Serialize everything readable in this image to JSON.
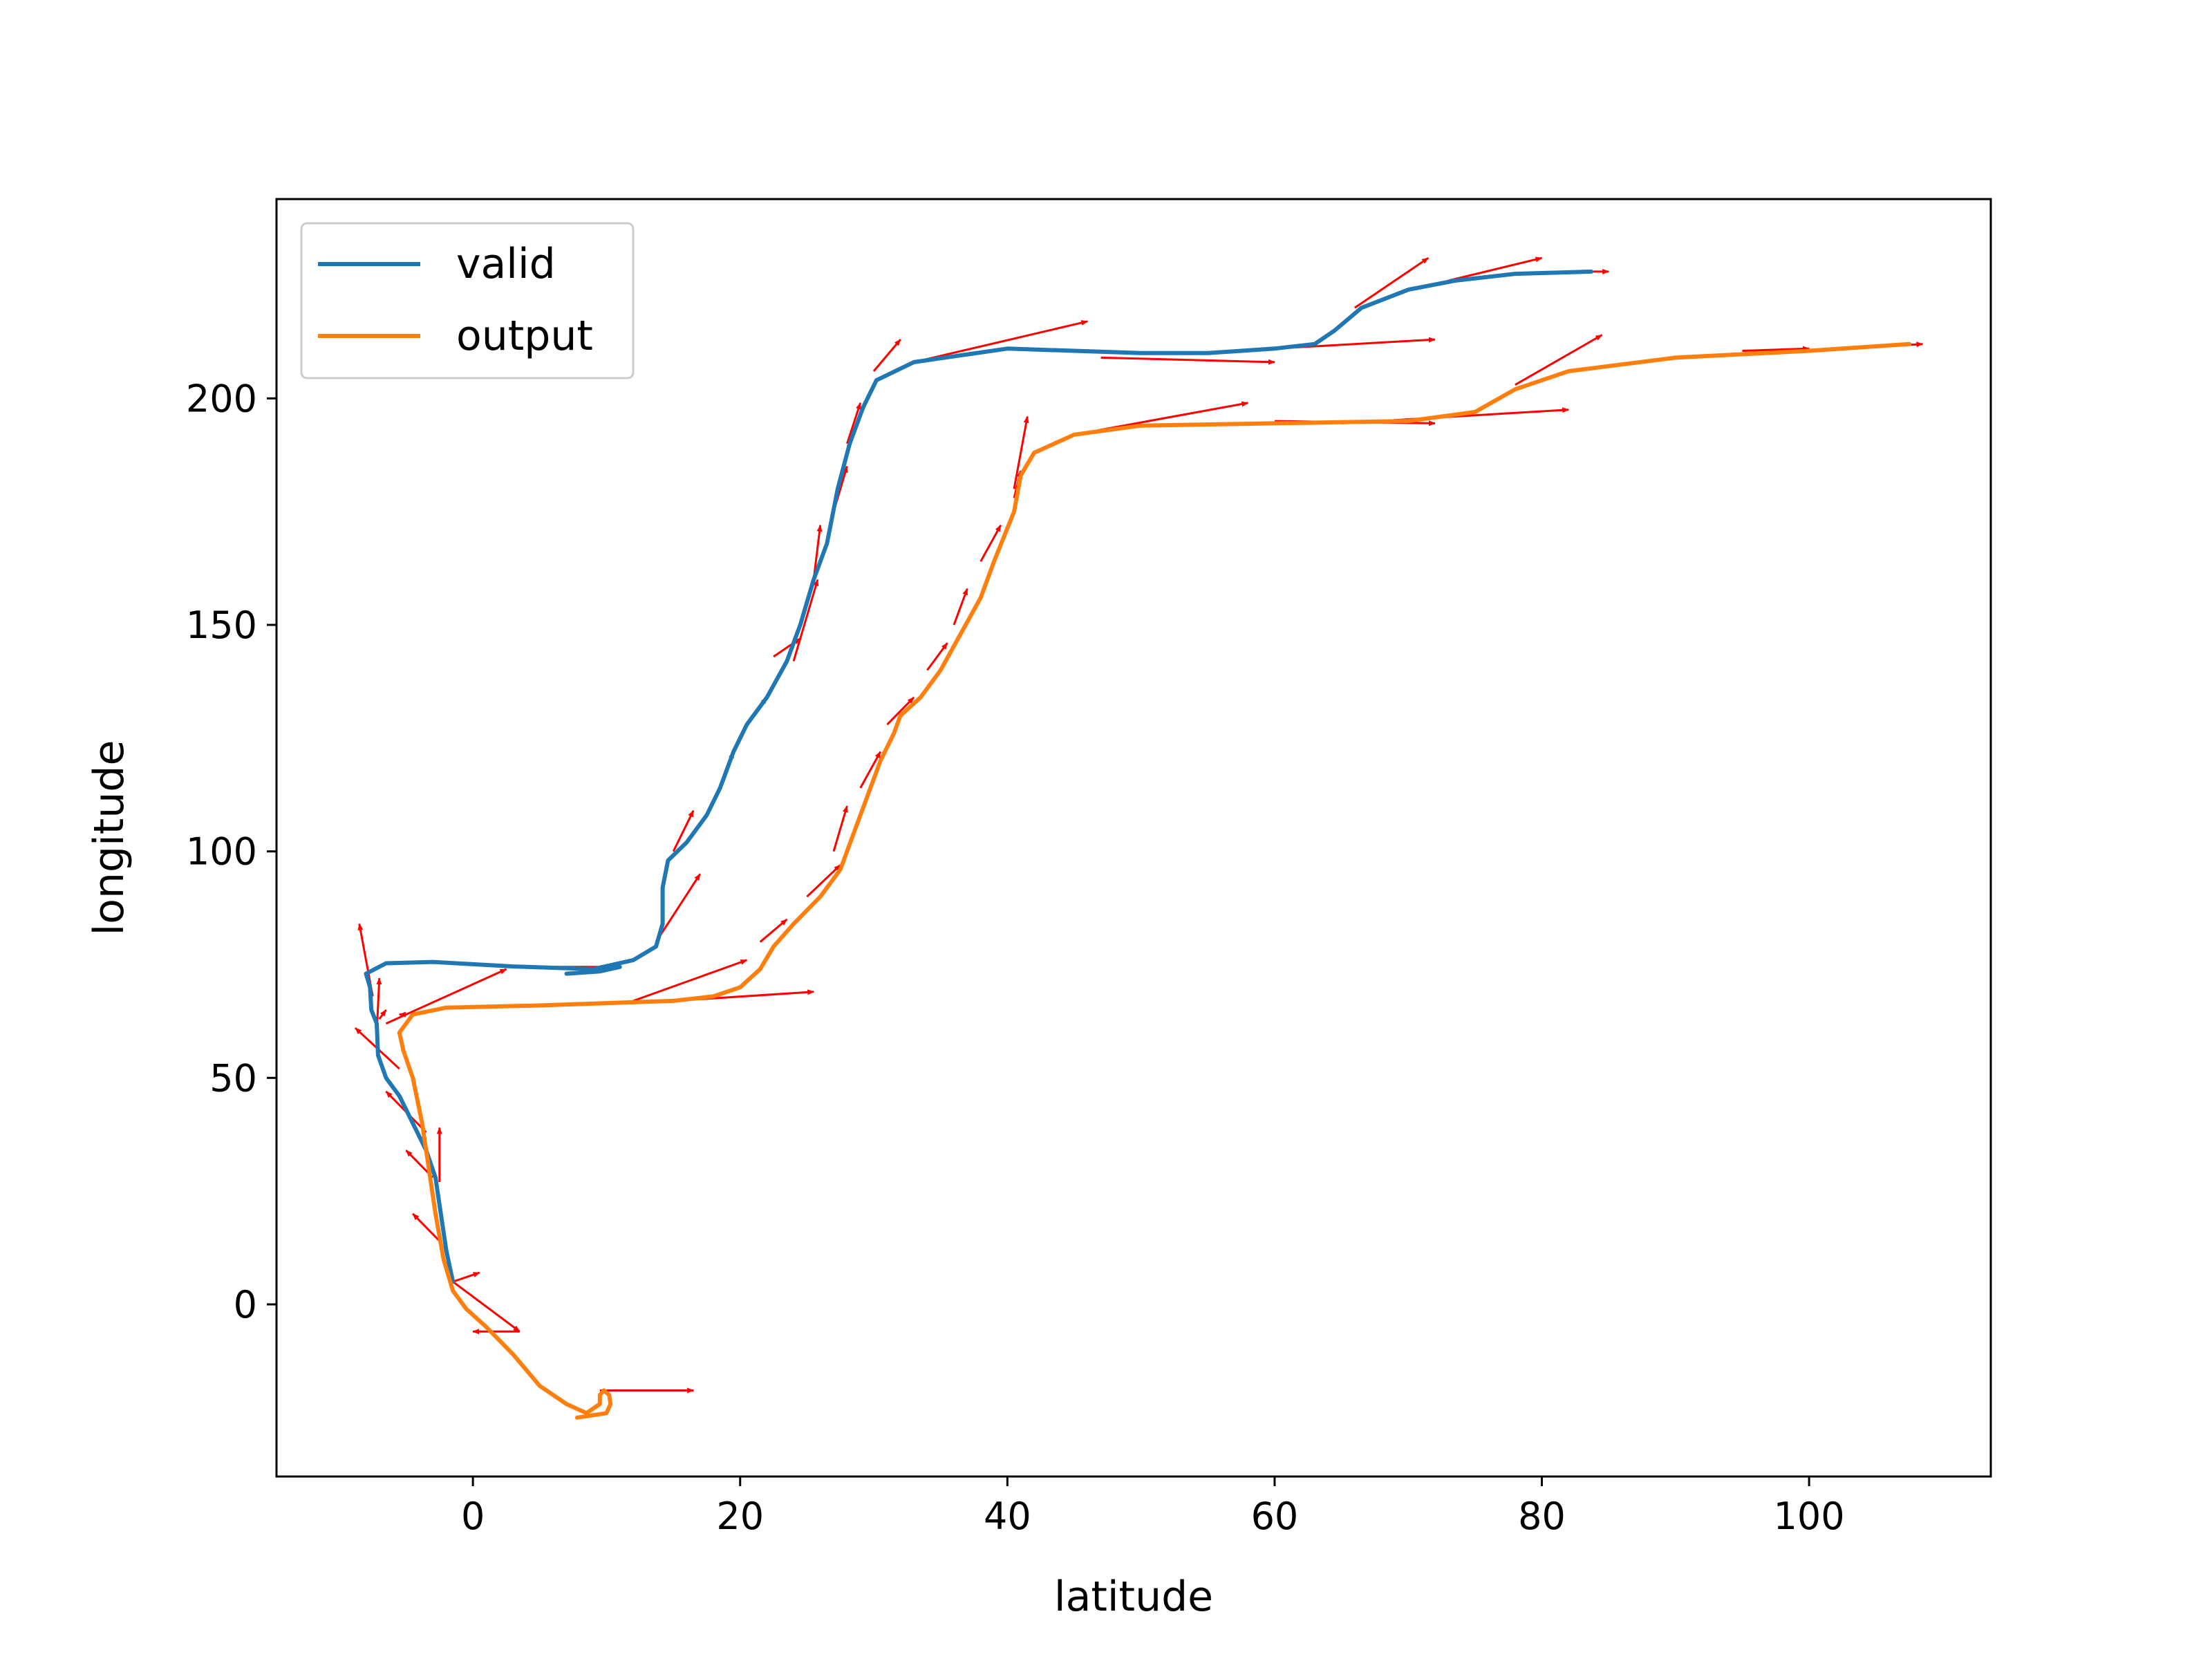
{
  "chart_data": {
    "type": "line",
    "title": "",
    "xlabel": "latitude",
    "ylabel": "longitude",
    "xlim": [
      -14.7,
      113.6
    ],
    "ylim": [
      -38,
      244
    ],
    "xticks": [
      0,
      20,
      40,
      60,
      80,
      100
    ],
    "yticks": [
      0,
      50,
      100,
      150,
      200
    ],
    "grid": false,
    "legend": {
      "placement": "top-left"
    },
    "series": [
      {
        "name": "valid",
        "color": "#1f77b4",
        "points": [
          [
            -1.5,
            5
          ],
          [
            -2.0,
            12
          ],
          [
            -2.5,
            22
          ],
          [
            -2.8,
            28
          ],
          [
            -3.5,
            34
          ],
          [
            -4.5,
            40
          ],
          [
            -5.5,
            46
          ],
          [
            -6.5,
            50
          ],
          [
            -7.1,
            55
          ],
          [
            -7.2,
            62
          ],
          [
            -7.6,
            65
          ],
          [
            -7.7,
            70
          ],
          [
            -8.0,
            73
          ],
          [
            -6.5,
            75.3
          ],
          [
            -3.0,
            75.6
          ],
          [
            3.0,
            74.6
          ],
          [
            9.0,
            74.0
          ],
          [
            12.0,
            76.0
          ],
          [
            13.7,
            79.0
          ],
          [
            14.2,
            84.0
          ],
          [
            14.2,
            92.0
          ],
          [
            14.6,
            98.0
          ],
          [
            16.0,
            102.0
          ],
          [
            17.5,
            108.0
          ],
          [
            18.5,
            114.0
          ],
          [
            19.5,
            122.0
          ],
          [
            20.5,
            128.0
          ],
          [
            22.0,
            134.0
          ],
          [
            23.5,
            142.0
          ],
          [
            24.5,
            150.0
          ],
          [
            25.5,
            160.0
          ],
          [
            26.5,
            168.0
          ],
          [
            27.3,
            180.0
          ],
          [
            28.2,
            190.0
          ],
          [
            29.2,
            198.0
          ],
          [
            30.2,
            204.0
          ],
          [
            33.0,
            208.0
          ],
          [
            40.0,
            211.0
          ],
          [
            50.0,
            210.0
          ],
          [
            55.0,
            210.0
          ],
          [
            60.0,
            211.0
          ],
          [
            63.0,
            212.0
          ],
          [
            64.5,
            215.0
          ],
          [
            66.5,
            220.0
          ],
          [
            70.0,
            224.0
          ],
          [
            73.5,
            226.0
          ],
          [
            78.0,
            227.5
          ],
          [
            83.7,
            228.0
          ]
        ],
        "tail": [
          [
            7.0,
            73.0
          ],
          [
            9.5,
            73.5
          ],
          [
            11.0,
            74.5
          ]
        ]
      },
      {
        "name": "output",
        "color": "#ff7f0e",
        "points": [
          [
            7.8,
            -25
          ],
          [
            10.0,
            -24
          ],
          [
            10.3,
            -22
          ],
          [
            10.2,
            -20
          ],
          [
            9.8,
            -19
          ],
          [
            9.5,
            -20
          ],
          [
            9.5,
            -22
          ],
          [
            8.5,
            -24
          ],
          [
            7.0,
            -22
          ],
          [
            5.0,
            -18
          ],
          [
            3.0,
            -11
          ],
          [
            1.0,
            -5
          ],
          [
            -0.5,
            -1
          ],
          [
            -1.5,
            3
          ],
          [
            -2.2,
            10
          ],
          [
            -2.8,
            20
          ],
          [
            -3.3,
            30
          ],
          [
            -3.8,
            40
          ],
          [
            -4.5,
            50
          ],
          [
            -5.2,
            56
          ],
          [
            -5.5,
            60
          ],
          [
            -4.5,
            64
          ],
          [
            -2.0,
            65.5
          ],
          [
            5.0,
            66.0
          ],
          [
            15.0,
            67.0
          ],
          [
            18.0,
            68.0
          ],
          [
            20.0,
            70.0
          ],
          [
            21.5,
            74.0
          ],
          [
            22.5,
            79.0
          ],
          [
            24.0,
            84.0
          ],
          [
            26.0,
            90.0
          ],
          [
            27.5,
            96.0
          ],
          [
            28.5,
            104.0
          ],
          [
            29.5,
            112.0
          ],
          [
            30.5,
            120.0
          ],
          [
            31.5,
            126.0
          ],
          [
            32.0,
            130.0
          ],
          [
            33.5,
            134.0
          ],
          [
            35.0,
            140.0
          ],
          [
            36.5,
            148.0
          ],
          [
            38.0,
            156.0
          ],
          [
            39.0,
            164.0
          ],
          [
            40.5,
            175.0
          ],
          [
            41.0,
            183.0
          ],
          [
            42.0,
            188.0
          ],
          [
            45.0,
            192.0
          ],
          [
            50.0,
            194.0
          ],
          [
            60.0,
            194.5
          ],
          [
            70.0,
            195.0
          ],
          [
            75.0,
            197.0
          ],
          [
            78.0,
            202.0
          ],
          [
            82.0,
            206.0
          ],
          [
            90.0,
            209.0
          ],
          [
            100.0,
            210.5
          ],
          [
            107.5,
            212.0
          ]
        ]
      }
    ],
    "arrows": {
      "color": "#ff0000",
      "segments": [
        [
          -1.5,
          5,
          3.5,
          -6
        ],
        [
          -1.5,
          5,
          0.5,
          7
        ],
        [
          3.5,
          -6,
          0.0,
          -6
        ],
        [
          9.5,
          -19,
          16.5,
          -19
        ],
        [
          -2.5,
          14,
          -4.5,
          20
        ],
        [
          -3.0,
          28,
          -5.0,
          34
        ],
        [
          -2.5,
          27,
          -2.5,
          39
        ],
        [
          -3.5,
          38,
          -6.5,
          47
        ],
        [
          -5.5,
          52,
          -8.8,
          61
        ],
        [
          -7.2,
          60,
          -7.0,
          72
        ],
        [
          -7.5,
          68,
          -8.5,
          84
        ],
        [
          -7.0,
          63,
          -6.5,
          65
        ],
        [
          -6.5,
          62,
          2.5,
          74
        ],
        [
          -5.0,
          64,
          -5.5,
          64
        ],
        [
          3.0,
          74.5,
          11.0,
          74.5
        ],
        [
          12.0,
          67,
          20.5,
          76
        ],
        [
          13.7,
          80,
          17.0,
          95
        ],
        [
          15.0,
          67,
          25.5,
          69
        ],
        [
          15.0,
          100,
          16.5,
          109
        ],
        [
          18.5,
          114,
          19.5,
          122
        ],
        [
          20.5,
          128,
          22.0,
          134
        ],
        [
          22.5,
          143,
          24.5,
          147
        ],
        [
          24.0,
          142,
          25.8,
          160
        ],
        [
          25.5,
          160,
          26.0,
          172
        ],
        [
          27.0,
          175,
          28.0,
          185
        ],
        [
          28.0,
          190,
          29.0,
          199
        ],
        [
          30.0,
          206,
          32.0,
          213
        ],
        [
          33.0,
          208,
          46.0,
          217
        ],
        [
          47.0,
          209,
          60.0,
          208
        ],
        [
          60.0,
          211,
          72.0,
          213
        ],
        [
          66.0,
          220,
          71.5,
          231
        ],
        [
          73.0,
          226,
          80.0,
          231
        ],
        [
          83.0,
          228,
          85.0,
          228
        ],
        [
          21.5,
          80,
          23.5,
          85
        ],
        [
          25.0,
          90,
          27.5,
          97
        ],
        [
          27.0,
          100,
          28.0,
          110
        ],
        [
          29.0,
          114,
          30.5,
          122
        ],
        [
          31.0,
          128,
          33.0,
          134
        ],
        [
          34.0,
          140,
          35.5,
          146
        ],
        [
          36.0,
          150,
          37.0,
          158
        ],
        [
          38.0,
          164,
          39.5,
          172
        ],
        [
          40.5,
          178,
          41.0,
          184
        ],
        [
          40.5,
          180,
          41.5,
          196
        ],
        [
          45.0,
          192,
          58.0,
          199
        ],
        [
          60.0,
          195,
          72.0,
          194.5
        ],
        [
          65.0,
          194.5,
          82.0,
          197.5
        ],
        [
          78.0,
          203,
          84.5,
          214
        ],
        [
          95.0,
          210.5,
          100.0,
          211
        ],
        [
          100.0,
          210.5,
          108.5,
          212
        ]
      ]
    }
  }
}
